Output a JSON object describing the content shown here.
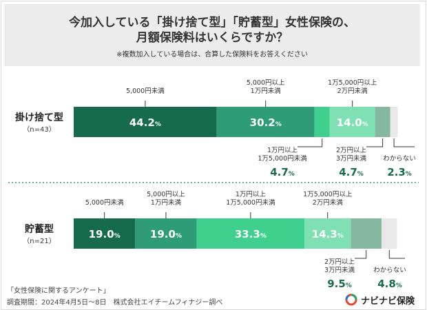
{
  "header": {
    "title_line1": "今加入している「掛け捨て型」「貯蓄型」女性保険の、",
    "title_line2": "月額保険料はいくらですか？",
    "note": "※複数加入している場合は、合算した保険料をお答えください"
  },
  "footer": {
    "survey": "「女性保険に関するアンケート」",
    "period": "調査期間：2024年4月5日～8日　株式会社エイチームフィナジー調べ"
  },
  "logo": {
    "text": "ナビナビ保険",
    "icon": "navinavi-logo-icon"
  },
  "colors": {
    "c1": "#166b4d",
    "c2": "#2e9c77",
    "c3": "#3fcf8e",
    "c4": "#7fe0b4",
    "c5": "#86b8a0",
    "c6": "#e9e9e9"
  },
  "chart_data": {
    "type": "bar",
    "stacked": true,
    "orientation": "horizontal",
    "percent_suffix": "%",
    "bars": [
      {
        "label": "掛け捨て型",
        "n": "（n=43）",
        "segments": [
          {
            "category": "5,000円未満",
            "value": 44.2,
            "color": "#166b4d",
            "pos": "inside"
          },
          {
            "category": "5,000円以上\n1万円未満",
            "value": 30.2,
            "color": "#2e9c77",
            "pos": "inside"
          },
          {
            "category": "1万円以上\n1万5,000円未満",
            "value": 4.7,
            "color": "#3fcf8e",
            "pos": "below"
          },
          {
            "category": "1万5,000円以上\n2万円未満",
            "value": 14.0,
            "color": "#7fe0b4",
            "pos": "inside"
          },
          {
            "category": "2万円以上\n3万円未満",
            "value": 4.7,
            "color": "#86b8a0",
            "pos": "below"
          },
          {
            "category": "わからない",
            "value": 2.3,
            "color": "#e9e9e9",
            "pos": "below"
          }
        ]
      },
      {
        "label": "貯蓄型",
        "n": "（n=21）",
        "segments": [
          {
            "category": "5,000円未満",
            "value": 19.0,
            "color": "#166b4d",
            "pos": "inside"
          },
          {
            "category": "5,000円以上\n1万円未満",
            "value": 19.0,
            "color": "#2e9c77",
            "pos": "inside"
          },
          {
            "category": "1万円以上\n1万5,000円未満",
            "value": 33.3,
            "color": "#3fcf8e",
            "pos": "inside"
          },
          {
            "category": "1万5,000円以上\n2万円未満",
            "value": 14.3,
            "color": "#7fe0b4",
            "pos": "inside"
          },
          {
            "category": "2万円以上\n3万円未満",
            "value": 9.5,
            "color": "#86b8a0",
            "pos": "below"
          },
          {
            "category": "わからない",
            "value": 4.8,
            "color": "#e9e9e9",
            "pos": "below"
          }
        ]
      }
    ]
  }
}
